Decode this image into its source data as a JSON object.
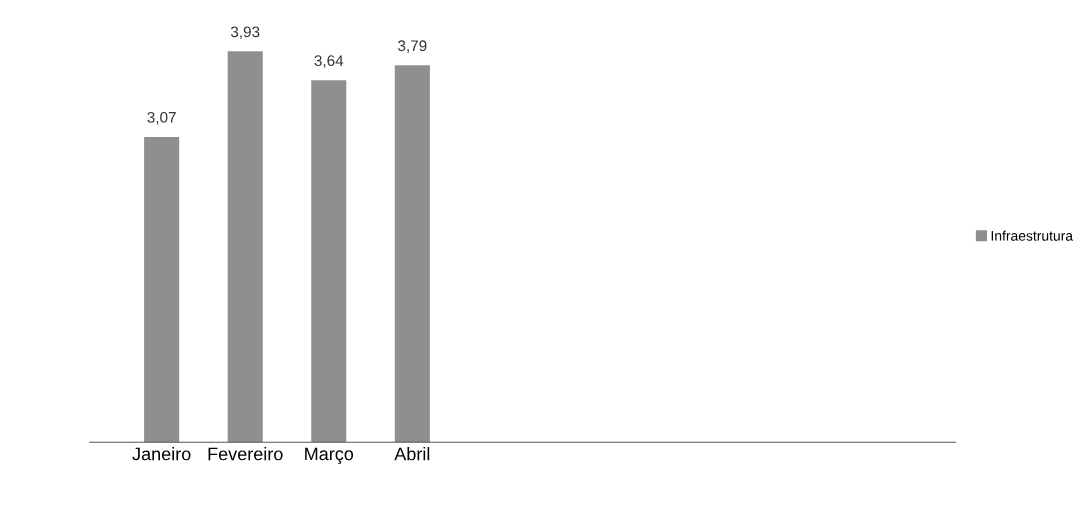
{
  "chart_data": {
    "type": "bar",
    "categories": [
      "Janeiro",
      "Fevereiro",
      "Março",
      "Abril",
      null,
      null,
      null,
      null,
      null,
      null
    ],
    "series": [
      {
        "name": "Infraestrutura",
        "color": "#8f8f8f",
        "values": [
          3.07,
          3.93,
          3.64,
          3.79,
          null,
          null,
          null,
          null,
          null,
          null
        ],
        "value_labels": [
          "3,07",
          "3,93",
          "3,64",
          "3,79",
          null,
          null,
          null,
          null,
          null,
          null
        ]
      }
    ],
    "tick_labels": "x",
    "legend": "right",
    "grid": false
  }
}
